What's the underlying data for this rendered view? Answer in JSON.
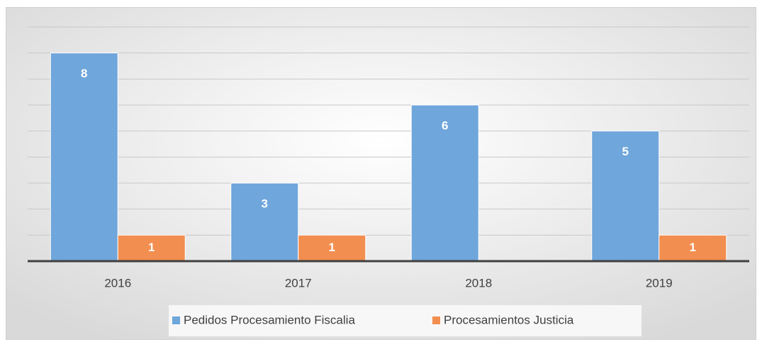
{
  "chart_data": {
    "type": "bar",
    "categories": [
      "2016",
      "2017",
      "2018",
      "2019"
    ],
    "series": [
      {
        "name": "Pedidos Procesamiento Fiscalia",
        "color": "#6fa6db",
        "values": [
          8,
          3,
          6,
          5
        ]
      },
      {
        "name": "Procesamientos Justicia",
        "color": "#f28e4f",
        "values": [
          1,
          1,
          null,
          1
        ]
      }
    ],
    "ylim": [
      0,
      9
    ],
    "yticks": [
      0,
      1,
      2,
      3,
      4,
      5,
      6,
      7,
      8,
      9
    ],
    "grid": true,
    "legend": "bottom"
  }
}
